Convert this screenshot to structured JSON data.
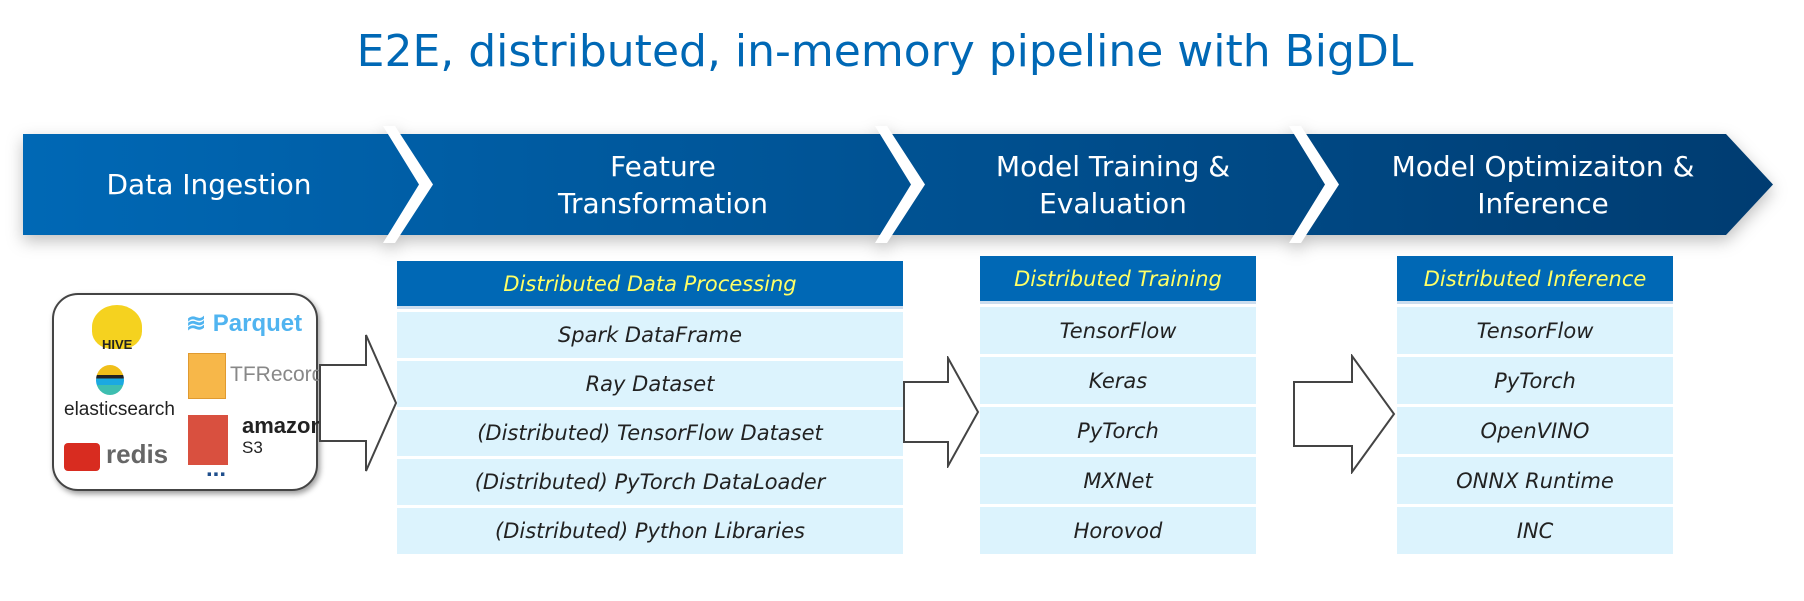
{
  "title": "E2E, distributed, in-memory pipeline with BigDL",
  "stages": [
    "Data Ingestion",
    "Feature Transformation",
    "Model Training & Evaluation",
    "Model Optimizaiton & Inference"
  ],
  "sources": {
    "hive": "HIVE",
    "parquet": "Parquet",
    "elasticsearch": "elasticsearch",
    "tfrecord": "TFRecord",
    "redis": "redis",
    "amazon": "amazon",
    "s3": "S3",
    "more": "..."
  },
  "tables": [
    {
      "header": "Distributed Data Processing",
      "rows": [
        "Spark DataFrame",
        "Ray Dataset",
        "(Distributed) TensorFlow Dataset",
        "(Distributed) PyTorch DataLoader",
        "(Distributed) Python Libraries"
      ]
    },
    {
      "header": "Distributed Training",
      "rows": [
        "TensorFlow",
        "Keras",
        "PyTorch",
        "MXNet",
        "Horovod"
      ]
    },
    {
      "header": "Distributed Inference",
      "rows": [
        "TensorFlow",
        "PyTorch",
        "OpenVINO",
        "ONNX Runtime",
        "INC"
      ]
    }
  ],
  "colors": {
    "title": "#0068b5",
    "banner_start": "#0068b5",
    "banner_end": "#003c71",
    "header_bg": "#0068b5",
    "header_text": "#ffff66",
    "row_bg": "#dcf3fd"
  }
}
